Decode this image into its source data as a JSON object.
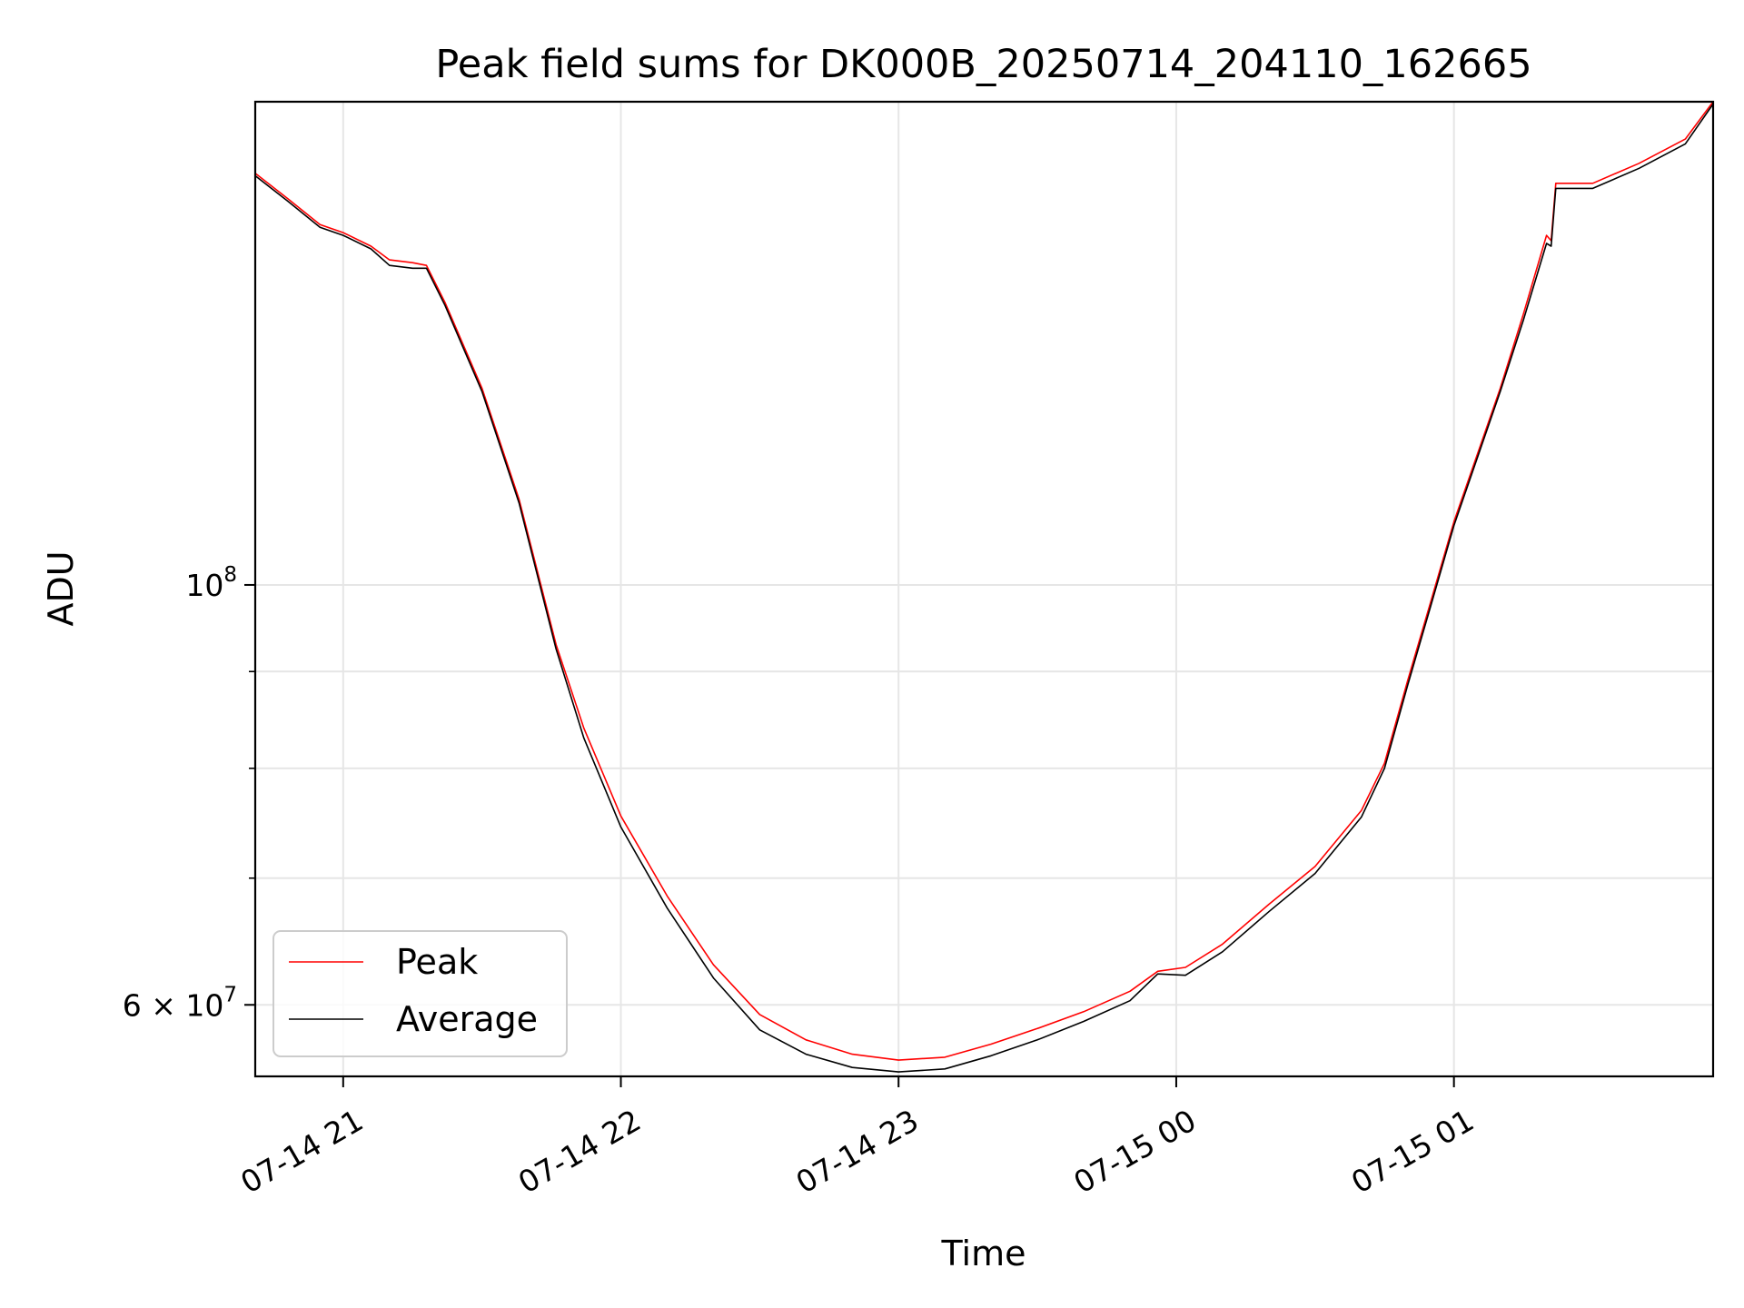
{
  "chart_data": {
    "type": "line",
    "title": "Peak field sums for DK000B_20250714_204110_162665",
    "xlabel": "Time",
    "ylabel": "ADU",
    "x_scale": "time",
    "y_scale": "log",
    "xlim": [
      "2025-07-14 20:41",
      "2025-07-15 01:56"
    ],
    "ylim": [
      55000000,
      180000000
    ],
    "x_ticks": [
      {
        "value": "2025-07-14 21:00",
        "label": "07-14 21"
      },
      {
        "value": "2025-07-14 22:00",
        "label": "07-14 22"
      },
      {
        "value": "2025-07-14 23:00",
        "label": "07-14 23"
      },
      {
        "value": "2025-07-15 00:00",
        "label": "07-15 00"
      },
      {
        "value": "2025-07-15 01:00",
        "label": "07-15 01"
      }
    ],
    "y_major_ticks": [
      {
        "value": 100000000,
        "label_base": "10",
        "label_exp": "8"
      },
      {
        "value": 60000000,
        "label_base": "6 × 10",
        "label_exp": "7"
      }
    ],
    "y_minor_ticks": [
      70000000,
      80000000,
      90000000
    ],
    "grid": true,
    "legend_position": "lower-left",
    "series": [
      {
        "name": "Peak",
        "color": "#ff0000",
        "points": [
          [
            "2025-07-14 20:41",
            165000000
          ],
          [
            "2025-07-14 20:48",
            160000000
          ],
          [
            "2025-07-14 20:55",
            155000000
          ],
          [
            "2025-07-14 21:00",
            153500000
          ],
          [
            "2025-07-14 21:06",
            151000000
          ],
          [
            "2025-07-14 21:10",
            148500000
          ],
          [
            "2025-07-14 21:15",
            148000000
          ],
          [
            "2025-07-14 21:18",
            147500000
          ],
          [
            "2025-07-14 21:22",
            141000000
          ],
          [
            "2025-07-14 21:30",
            127000000
          ],
          [
            "2025-07-14 21:38",
            111000000
          ],
          [
            "2025-07-14 21:46",
            93000000
          ],
          [
            "2025-07-14 21:52",
            84000000
          ],
          [
            "2025-07-14 22:00",
            75500000
          ],
          [
            "2025-07-14 22:10",
            68500000
          ],
          [
            "2025-07-14 22:20",
            63000000
          ],
          [
            "2025-07-14 22:30",
            59300000
          ],
          [
            "2025-07-14 22:40",
            57500000
          ],
          [
            "2025-07-14 22:50",
            56500000
          ],
          [
            "2025-07-14 23:00",
            56100000
          ],
          [
            "2025-07-14 23:10",
            56300000
          ],
          [
            "2025-07-14 23:20",
            57200000
          ],
          [
            "2025-07-14 23:30",
            58300000
          ],
          [
            "2025-07-14 23:40",
            59500000
          ],
          [
            "2025-07-14 23:50",
            61000000
          ],
          [
            "2025-07-14 23:56",
            62500000
          ],
          [
            "2025-07-15 00:02",
            62800000
          ],
          [
            "2025-07-15 00:10",
            64600000
          ],
          [
            "2025-07-15 00:20",
            67800000
          ],
          [
            "2025-07-15 00:30",
            71000000
          ],
          [
            "2025-07-15 00:40",
            76000000
          ],
          [
            "2025-07-15 00:45",
            80500000
          ],
          [
            "2025-07-15 00:50",
            89000000
          ],
          [
            "2025-07-15 00:55",
            98000000
          ],
          [
            "2025-07-15 01:00",
            108000000
          ],
          [
            "2025-07-15 01:10",
            127000000
          ],
          [
            "2025-07-15 01:15",
            139000000
          ],
          [
            "2025-07-15 01:20",
            153000000
          ],
          [
            "2025-07-15 01:21",
            152000000
          ],
          [
            "2025-07-15 01:22",
            163000000
          ],
          [
            "2025-07-15 01:30",
            163000000
          ],
          [
            "2025-07-15 01:40",
            167000000
          ],
          [
            "2025-07-15 01:50",
            172000000
          ],
          [
            "2025-07-15 01:56",
            180000000
          ]
        ]
      },
      {
        "name": "Average",
        "color": "#000000",
        "points": [
          [
            "2025-07-14 20:41",
            164500000
          ],
          [
            "2025-07-14 20:48",
            159500000
          ],
          [
            "2025-07-14 20:55",
            154500000
          ],
          [
            "2025-07-14 21:00",
            153000000
          ],
          [
            "2025-07-14 21:06",
            150500000
          ],
          [
            "2025-07-14 21:10",
            147500000
          ],
          [
            "2025-07-14 21:15",
            147000000
          ],
          [
            "2025-07-14 21:18",
            147000000
          ],
          [
            "2025-07-14 21:22",
            140500000
          ],
          [
            "2025-07-14 21:30",
            126500000
          ],
          [
            "2025-07-14 21:38",
            110500000
          ],
          [
            "2025-07-14 21:46",
            92500000
          ],
          [
            "2025-07-14 21:52",
            83000000
          ],
          [
            "2025-07-14 22:00",
            74500000
          ],
          [
            "2025-07-14 22:10",
            67500000
          ],
          [
            "2025-07-14 22:20",
            62000000
          ],
          [
            "2025-07-14 22:30",
            58200000
          ],
          [
            "2025-07-14 22:40",
            56500000
          ],
          [
            "2025-07-14 22:50",
            55600000
          ],
          [
            "2025-07-14 23:00",
            55300000
          ],
          [
            "2025-07-14 23:10",
            55500000
          ],
          [
            "2025-07-14 23:20",
            56400000
          ],
          [
            "2025-07-14 23:30",
            57500000
          ],
          [
            "2025-07-14 23:40",
            58800000
          ],
          [
            "2025-07-14 23:50",
            60300000
          ],
          [
            "2025-07-14 23:56",
            62300000
          ],
          [
            "2025-07-15 00:02",
            62200000
          ],
          [
            "2025-07-15 00:10",
            64000000
          ],
          [
            "2025-07-15 00:20",
            67200000
          ],
          [
            "2025-07-15 00:30",
            70400000
          ],
          [
            "2025-07-15 00:40",
            75400000
          ],
          [
            "2025-07-15 00:45",
            80000000
          ],
          [
            "2025-07-15 00:50",
            88500000
          ],
          [
            "2025-07-15 00:55",
            97500000
          ],
          [
            "2025-07-15 01:00",
            107500000
          ],
          [
            "2025-07-15 01:10",
            126500000
          ],
          [
            "2025-07-15 01:15",
            138000000
          ],
          [
            "2025-07-15 01:20",
            151500000
          ],
          [
            "2025-07-15 01:21",
            151000000
          ],
          [
            "2025-07-15 01:22",
            162000000
          ],
          [
            "2025-07-15 01:30",
            162000000
          ],
          [
            "2025-07-15 01:40",
            166000000
          ],
          [
            "2025-07-15 01:50",
            171000000
          ],
          [
            "2025-07-15 01:56",
            179500000
          ]
        ]
      }
    ]
  }
}
